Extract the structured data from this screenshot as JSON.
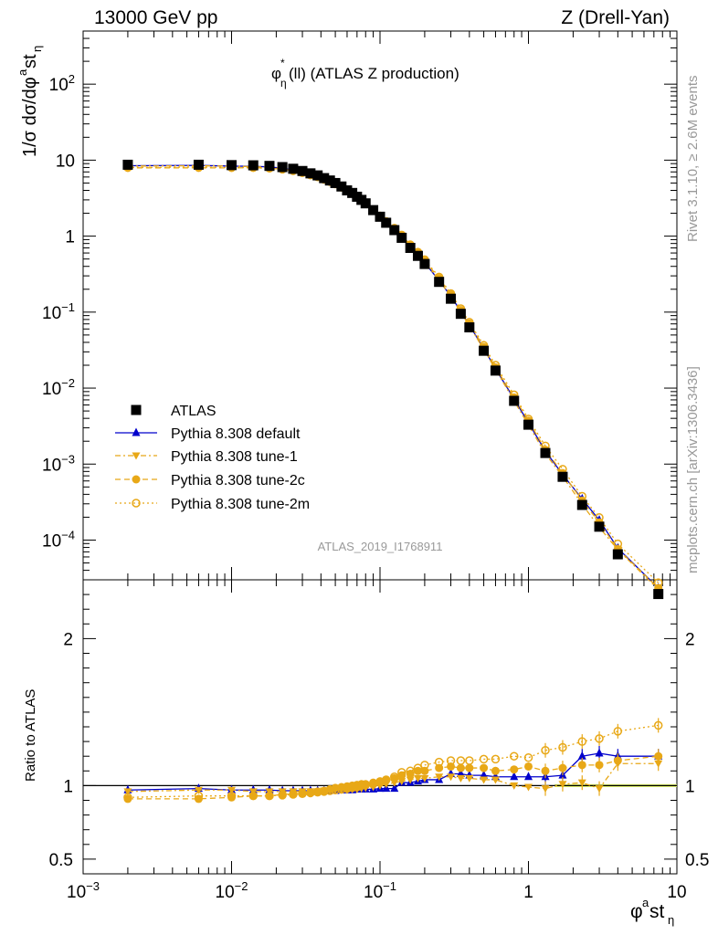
{
  "header": {
    "left": "13000 GeV pp",
    "right": "Z (Drell-Yan)"
  },
  "side": {
    "rivet": "Rivet 3.1.10, ≥ 2.6M events",
    "mcplots": "mcplots.cern.ch [arXiv:1306.3436]"
  },
  "chart_data": [
    {
      "type": "scatter",
      "title": "φ*η(ll) (ATLAS Z production)",
      "ylabel": "1/σ dσ/dφ^a st_η",
      "xlabel": "φ^a st_η",
      "xscale": "log",
      "yscale": "log",
      "xlim": [
        0.001,
        10
      ],
      "ylim": [
        3e-05,
        500
      ],
      "watermark": "ATLAS_2019_I1768911",
      "legend_position": "lower-left",
      "x_tick_labels": [
        "10^-3",
        "10^-2",
        "10^-1",
        "1",
        "10"
      ],
      "y_tick_labels": [
        "10^-4",
        "10^-3",
        "10^-2",
        "10^-1",
        "1",
        "10",
        "10^2"
      ],
      "x": [
        0.002,
        0.006,
        0.01,
        0.014,
        0.018,
        0.022,
        0.026,
        0.03,
        0.034,
        0.038,
        0.042,
        0.046,
        0.05,
        0.055,
        0.06,
        0.065,
        0.07,
        0.075,
        0.08,
        0.09,
        0.1,
        0.11,
        0.125,
        0.14,
        0.16,
        0.18,
        0.2,
        0.25,
        0.3,
        0.35,
        0.4,
        0.5,
        0.6,
        0.8,
        1.0,
        1.3,
        1.7,
        2.3,
        3.0,
        4.0,
        7.5
      ],
      "series": [
        {
          "name": "ATLAS",
          "color": "#000000",
          "marker": "square",
          "values": [
            8.7,
            8.7,
            8.6,
            8.55,
            8.4,
            8.1,
            7.7,
            7.2,
            6.7,
            6.3,
            5.8,
            5.4,
            5.0,
            4.5,
            4.0,
            3.7,
            3.3,
            3.0,
            2.7,
            2.2,
            1.8,
            1.5,
            1.2,
            0.95,
            0.7,
            0.55,
            0.43,
            0.25,
            0.15,
            0.095,
            0.063,
            0.031,
            0.017,
            0.0068,
            0.0033,
            0.0014,
            0.00068,
            0.00029,
            0.00015,
            6.5e-05,
            1.95e-05
          ]
        },
        {
          "name": "Pythia 8.308 default",
          "color": "#0000cc",
          "marker": "triangle-up",
          "line": "solid",
          "ratio": [
            0.97,
            0.98,
            0.97,
            0.97,
            0.97,
            0.965,
            0.965,
            0.965,
            0.965,
            0.965,
            0.965,
            0.965,
            0.965,
            0.97,
            0.97,
            0.97,
            0.975,
            0.975,
            0.975,
            0.975,
            0.98,
            0.98,
            0.98,
            1.02,
            1.02,
            1.03,
            1.04,
            1.04,
            1.08,
            1.08,
            1.07,
            1.07,
            1.06,
            1.06,
            1.06,
            1.06,
            1.07,
            1.2,
            1.22,
            1.2,
            1.2
          ]
        },
        {
          "name": "Pythia 8.308 tune-1",
          "color": "#e8a817",
          "marker": "triangle-down",
          "line": "dash-dot",
          "ratio": [
            0.96,
            0.97,
            0.97,
            0.96,
            0.96,
            0.96,
            0.96,
            0.96,
            0.96,
            0.96,
            0.965,
            0.965,
            0.97,
            0.97,
            0.97,
            0.975,
            0.975,
            0.98,
            0.985,
            0.99,
            1.0,
            1.01,
            1.02,
            1.03,
            1.04,
            1.05,
            1.05,
            1.06,
            1.06,
            1.05,
            1.05,
            1.04,
            1.04,
            1.0,
            0.99,
            0.98,
            1.01,
            1.02,
            0.98,
            1.15,
            1.15
          ]
        },
        {
          "name": "Pythia 8.308 tune-2c",
          "color": "#e8a817",
          "marker": "circle",
          "line": "dashed",
          "ratio": [
            0.91,
            0.91,
            0.92,
            0.93,
            0.93,
            0.94,
            0.945,
            0.95,
            0.955,
            0.96,
            0.965,
            0.975,
            0.985,
            0.99,
            0.995,
            1.0,
            1.005,
            1.01,
            1.01,
            1.02,
            1.03,
            1.04,
            1.05,
            1.07,
            1.08,
            1.1,
            1.1,
            1.12,
            1.13,
            1.12,
            1.12,
            1.12,
            1.1,
            1.11,
            1.13,
            1.1,
            1.12,
            1.14,
            1.14,
            1.17,
            1.2
          ]
        },
        {
          "name": "Pythia 8.308 tune-2m",
          "color": "#e8a817",
          "marker": "circle-open",
          "line": "dotted",
          "ratio": [
            0.92,
            0.93,
            0.93,
            0.93,
            0.93,
            0.935,
            0.94,
            0.945,
            0.95,
            0.955,
            0.96,
            0.965,
            0.97,
            0.975,
            0.98,
            0.985,
            0.99,
            1.0,
            1.005,
            1.01,
            1.02,
            1.04,
            1.06,
            1.09,
            1.1,
            1.12,
            1.14,
            1.16,
            1.17,
            1.17,
            1.17,
            1.18,
            1.18,
            1.2,
            1.19,
            1.24,
            1.26,
            1.3,
            1.32,
            1.37,
            1.41
          ]
        }
      ]
    },
    {
      "type": "scatter",
      "ylabel": "Ratio to ATLAS",
      "xscale": "log",
      "xlim": [
        0.001,
        10
      ],
      "ylim": [
        0.4,
        2.4
      ],
      "y_tick_labels": [
        "0.5",
        "1",
        "2"
      ],
      "note": "ratio panel uses series[].ratio above"
    }
  ]
}
